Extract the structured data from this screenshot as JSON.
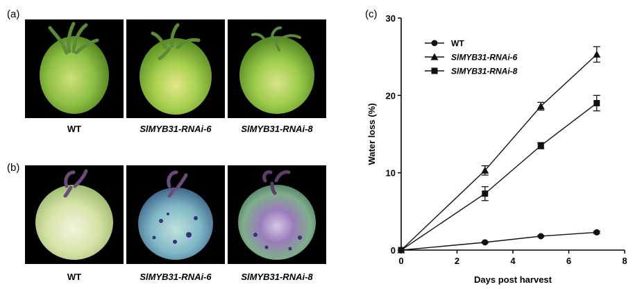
{
  "panels": {
    "a": "(a)",
    "b": "(b)",
    "c": "(c)"
  },
  "photos_a": [
    "WT",
    "SlMYB31-RNAi-6",
    "SlMYB31-RNAi-8"
  ],
  "photos_b": [
    "WT",
    "SlMYB31-RNAi-6",
    "SlMYB31-RNAi-8"
  ],
  "chart_data": {
    "type": "line",
    "xlabel": "Days post harvest",
    "ylabel": "Water loss (%)",
    "xlim": [
      0,
      8
    ],
    "ylim": [
      0,
      30
    ],
    "x_ticks": [
      0,
      2,
      4,
      6,
      8
    ],
    "y_ticks": [
      0,
      10,
      20,
      30
    ],
    "x": [
      0,
      3,
      5,
      7
    ],
    "legend_position": "top-left",
    "series": [
      {
        "name": "WT",
        "marker": "circle",
        "values": [
          0,
          1.0,
          1.8,
          2.3
        ],
        "errors": [
          0,
          0.1,
          0.1,
          0.15
        ]
      },
      {
        "name": "SlMYB31-RNAi-6",
        "marker": "triangle",
        "values": [
          0,
          10.3,
          18.6,
          25.3
        ],
        "errors": [
          0,
          0.6,
          0.5,
          1.0
        ]
      },
      {
        "name": "SlMYB31-RNAi-8",
        "marker": "square",
        "values": [
          0,
          7.3,
          13.5,
          19.0
        ],
        "errors": [
          0,
          0.9,
          0.4,
          1.0
        ]
      }
    ]
  }
}
